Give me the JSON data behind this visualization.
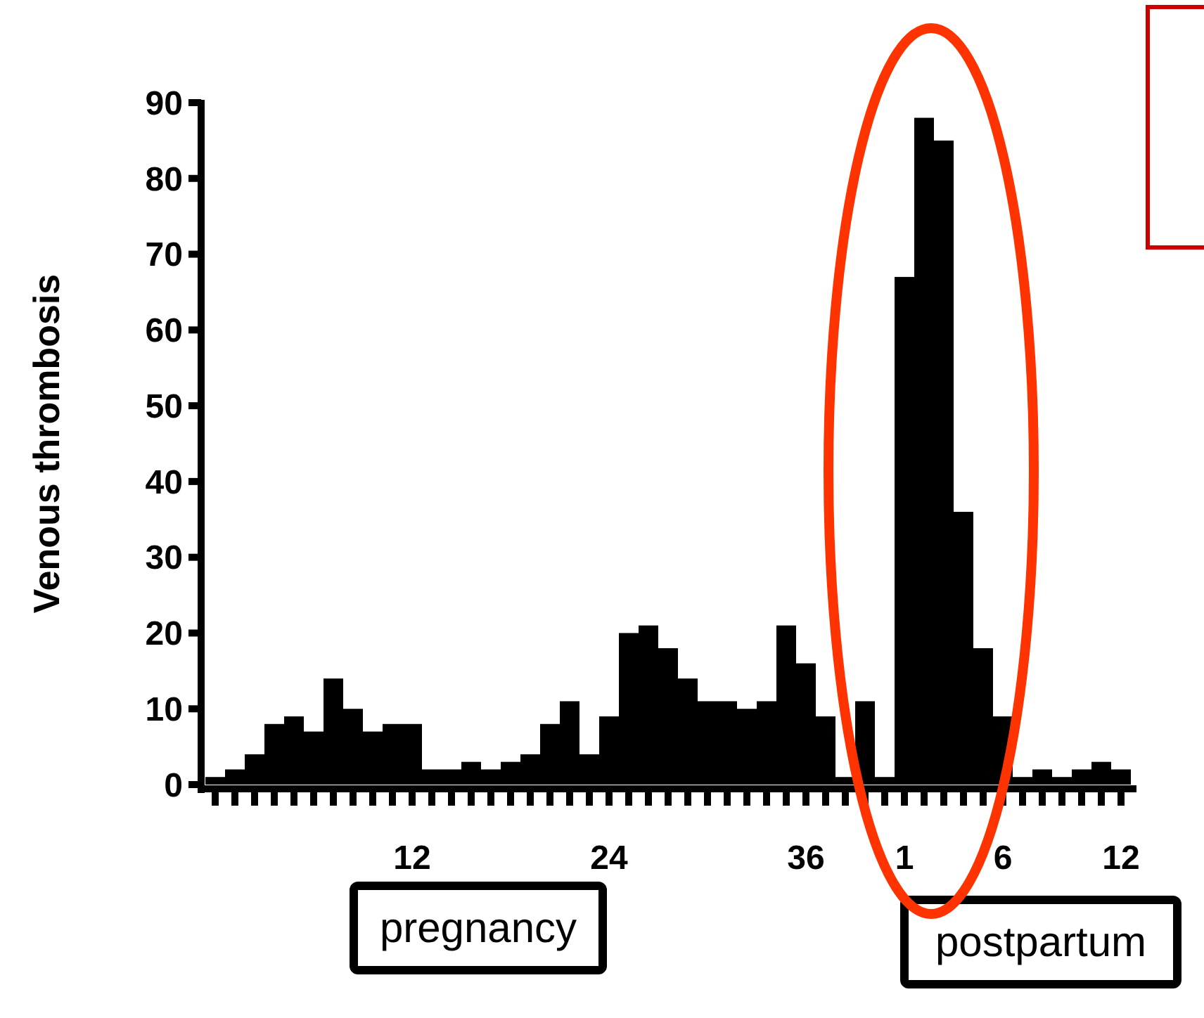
{
  "chart_data": {
    "type": "bar",
    "ylabel": "Venous thrombosis",
    "categories": [
      null,
      null,
      null,
      null,
      null,
      null,
      null,
      null,
      null,
      null,
      "12",
      null,
      null,
      null,
      null,
      null,
      null,
      null,
      null,
      null,
      "24",
      null,
      null,
      null,
      null,
      null,
      null,
      null,
      null,
      null,
      "36",
      null,
      null,
      null,
      null,
      "1",
      null,
      null,
      null,
      null,
      "6",
      null,
      null,
      null,
      null,
      null,
      "12"
    ],
    "values": [
      1,
      2,
      4,
      8,
      9,
      7,
      14,
      10,
      7,
      8,
      8,
      2,
      2,
      3,
      2,
      3,
      4,
      8,
      11,
      4,
      9,
      20,
      21,
      18,
      14,
      11,
      11,
      10,
      11,
      21,
      16,
      9,
      1,
      11,
      1,
      67,
      88,
      85,
      36,
      18,
      9,
      1,
      2,
      1,
      2,
      3,
      2
    ],
    "color": "#000000",
    "ylim": [
      0,
      90
    ],
    "yticks": [
      0,
      10,
      20,
      30,
      40,
      50,
      60,
      70,
      80,
      90
    ],
    "grid": false,
    "annotations": [
      "pregnancy",
      "postpartum"
    ]
  }
}
